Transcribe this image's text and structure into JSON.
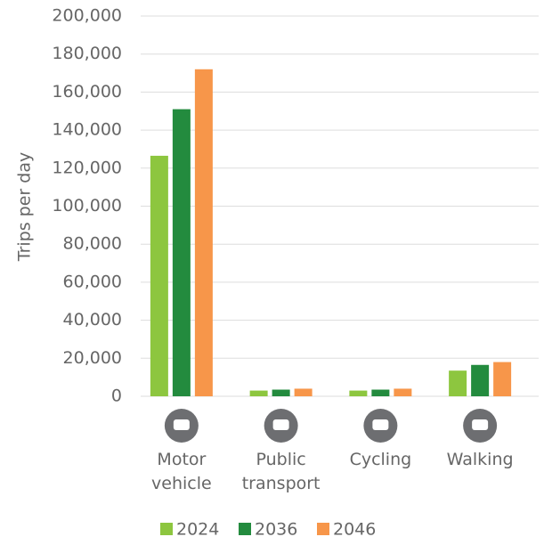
{
  "chart_data": {
    "type": "bar",
    "y_label": "Trips per day",
    "categories": [
      "Motor vehicle",
      "Public transport",
      "Cycling",
      "Walking"
    ],
    "series": [
      {
        "name": "2024",
        "color": "#8dc63f",
        "values": [
          126500,
          3000,
          3000,
          13500
        ]
      },
      {
        "name": "2036",
        "color": "#238b3e",
        "values": [
          151000,
          3500,
          3500,
          16500
        ]
      },
      {
        "name": "2046",
        "color": "#f7964a",
        "values": [
          172000,
          4000,
          4000,
          18000
        ]
      }
    ],
    "ylim": [
      0,
      200000
    ],
    "yticks": [
      {
        "value": 0,
        "label": "0"
      },
      {
        "value": 20000,
        "label": "20,000"
      },
      {
        "value": 40000,
        "label": "40,000"
      },
      {
        "value": 60000,
        "label": "60,000"
      },
      {
        "value": 80000,
        "label": "80,000"
      },
      {
        "value": 100000,
        "label": "100,000"
      },
      {
        "value": 120000,
        "label": "120,000"
      },
      {
        "value": 140000,
        "label": "140,000"
      },
      {
        "value": 160000,
        "label": "160,000"
      },
      {
        "value": 180000,
        "label": "180,000"
      },
      {
        "value": 200000,
        "label": "200,000"
      }
    ],
    "grid": true
  }
}
